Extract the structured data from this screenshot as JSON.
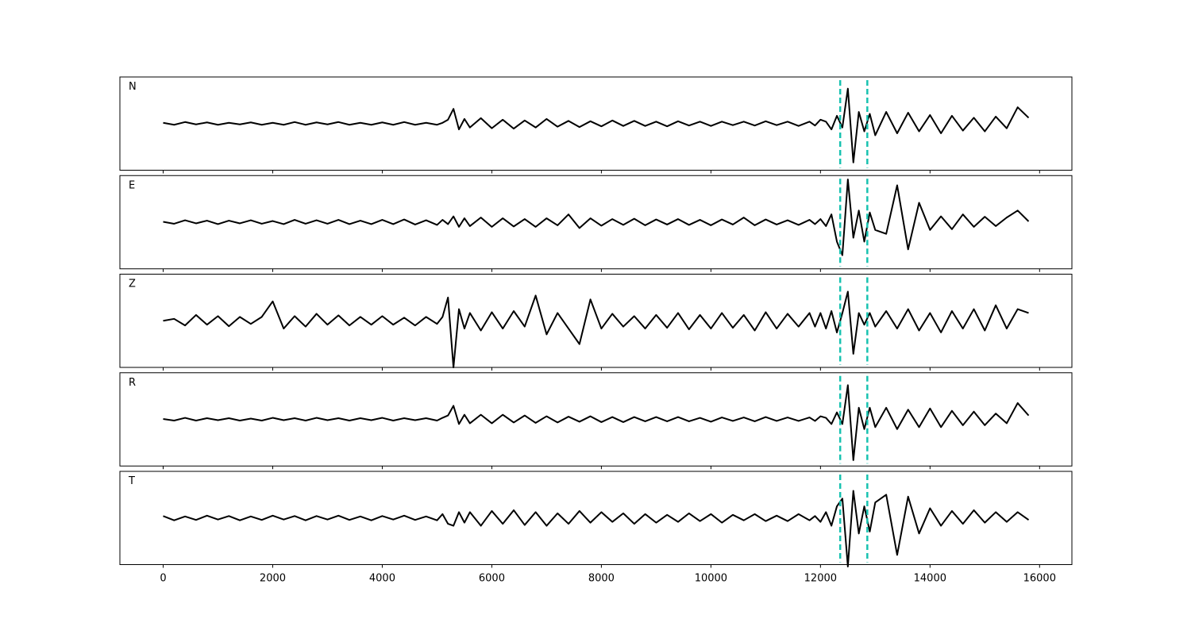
{
  "chart_data": {
    "type": "line",
    "x": [
      0,
      200,
      400,
      600,
      800,
      1000,
      1200,
      1400,
      1600,
      1800,
      2000,
      2200,
      2400,
      2600,
      2800,
      3000,
      3200,
      3400,
      3600,
      3800,
      4000,
      4200,
      4400,
      4600,
      4800,
      5000,
      5100,
      5200,
      5300,
      5400,
      5500,
      5600,
      5800,
      6000,
      6200,
      6400,
      6600,
      6800,
      7000,
      7200,
      7400,
      7600,
      7800,
      8000,
      8200,
      8400,
      8600,
      8800,
      9000,
      9200,
      9400,
      9600,
      9800,
      10000,
      10200,
      10400,
      10600,
      10800,
      11000,
      11200,
      11400,
      11600,
      11800,
      11900,
      12000,
      12100,
      12200,
      12300,
      12400,
      12500,
      12600,
      12700,
      12800,
      12900,
      13000,
      13200,
      13400,
      13600,
      13800,
      14000,
      14200,
      14400,
      14600,
      14800,
      15000,
      15200,
      15400,
      15600,
      15800
    ],
    "series": [
      {
        "name": "N",
        "color": "#000000",
        "values": [
          0.02,
          -0.03,
          0.04,
          -0.02,
          0.03,
          -0.03,
          0.02,
          -0.02,
          0.03,
          -0.03,
          0.02,
          -0.03,
          0.04,
          -0.03,
          0.03,
          -0.02,
          0.04,
          -0.03,
          0.02,
          -0.03,
          0.03,
          -0.03,
          0.04,
          -0.03,
          0.02,
          -0.03,
          0.02,
          0.1,
          0.38,
          -0.15,
          0.12,
          -0.1,
          0.14,
          -0.12,
          0.1,
          -0.13,
          0.08,
          -0.1,
          0.12,
          -0.08,
          0.07,
          -0.09,
          0.06,
          -0.07,
          0.08,
          -0.06,
          0.07,
          -0.06,
          0.05,
          -0.07,
          0.06,
          -0.05,
          0.05,
          -0.06,
          0.05,
          -0.04,
          0.05,
          -0.05,
          0.06,
          -0.04,
          0.05,
          -0.06,
          0.05,
          -0.05,
          0.1,
          0.05,
          -0.15,
          0.2,
          -0.1,
          0.9,
          -1.0,
          0.3,
          -0.2,
          0.25,
          -0.3,
          0.3,
          -0.25,
          0.28,
          -0.2,
          0.22,
          -0.25,
          0.2,
          -0.18,
          0.15,
          -0.2,
          0.18,
          -0.12,
          0.42,
          0.15
        ]
      },
      {
        "name": "E",
        "color": "#000000",
        "values": [
          0.01,
          -0.04,
          0.05,
          -0.03,
          0.04,
          -0.05,
          0.04,
          -0.03,
          0.05,
          -0.04,
          0.03,
          -0.05,
          0.06,
          -0.04,
          0.05,
          -0.04,
          0.06,
          -0.05,
          0.04,
          -0.05,
          0.06,
          -0.05,
          0.07,
          -0.06,
          0.05,
          -0.07,
          0.06,
          -0.05,
          0.15,
          -0.12,
          0.1,
          -0.1,
          0.12,
          -0.12,
          0.1,
          -0.11,
          0.08,
          -0.12,
          0.1,
          -0.08,
          0.2,
          -0.15,
          0.1,
          -0.09,
          0.08,
          -0.07,
          0.09,
          -0.08,
          0.07,
          -0.06,
          0.08,
          -0.07,
          0.06,
          -0.08,
          0.07,
          -0.06,
          0.12,
          -0.08,
          0.07,
          -0.06,
          0.05,
          -0.07,
          0.06,
          -0.05,
          0.08,
          -0.1,
          0.2,
          -0.5,
          -0.85,
          1.1,
          -0.4,
          0.3,
          -0.5,
          0.25,
          -0.2,
          -0.3,
          0.95,
          -0.7,
          0.5,
          -0.2,
          0.15,
          -0.18,
          0.2,
          -0.12,
          0.14,
          -0.1,
          0.12,
          0.3,
          0.02
        ]
      },
      {
        "name": "Z",
        "color": "#000000",
        "values": [
          0.0,
          0.05,
          -0.12,
          0.15,
          -0.1,
          0.12,
          -0.14,
          0.1,
          -0.08,
          0.1,
          0.5,
          -0.2,
          0.12,
          -0.15,
          0.18,
          -0.1,
          0.14,
          -0.12,
          0.1,
          -0.1,
          0.12,
          -0.1,
          0.08,
          -0.12,
          0.1,
          -0.08,
          0.1,
          0.6,
          -1.2,
          0.3,
          -0.2,
          0.2,
          -0.25,
          0.22,
          -0.2,
          0.25,
          -0.15,
          0.65,
          -0.35,
          0.2,
          -0.2,
          -0.6,
          0.55,
          -0.2,
          0.18,
          -0.15,
          0.12,
          -0.2,
          0.15,
          -0.18,
          0.2,
          -0.22,
          0.15,
          -0.2,
          0.2,
          -0.18,
          0.15,
          -0.25,
          0.22,
          -0.2,
          0.18,
          -0.15,
          0.2,
          -0.15,
          0.2,
          -0.2,
          0.25,
          -0.3,
          0.2,
          0.75,
          -0.85,
          0.2,
          -0.1,
          0.2,
          -0.15,
          0.25,
          -0.2,
          0.3,
          -0.25,
          0.2,
          -0.3,
          0.25,
          -0.2,
          0.3,
          -0.25,
          0.4,
          -0.2,
          0.3,
          0.2
        ]
      },
      {
        "name": "R",
        "color": "#000000",
        "values": [
          0.01,
          -0.03,
          0.04,
          -0.03,
          0.03,
          -0.02,
          0.03,
          -0.03,
          0.02,
          -0.03,
          0.04,
          -0.02,
          0.03,
          -0.03,
          0.04,
          -0.02,
          0.03,
          -0.03,
          0.03,
          -0.02,
          0.04,
          -0.03,
          0.03,
          -0.02,
          0.03,
          -0.03,
          0.04,
          0.1,
          0.35,
          -0.12,
          0.12,
          -0.1,
          0.12,
          -0.1,
          0.12,
          -0.08,
          0.1,
          -0.09,
          0.08,
          -0.08,
          0.07,
          -0.06,
          0.08,
          -0.07,
          0.06,
          -0.07,
          0.06,
          -0.05,
          0.06,
          -0.05,
          0.06,
          -0.05,
          0.04,
          -0.06,
          0.05,
          -0.04,
          0.05,
          -0.05,
          0.06,
          -0.04,
          0.05,
          -0.04,
          0.05,
          -0.04,
          0.08,
          0.04,
          -0.12,
          0.18,
          -0.12,
          0.88,
          -1.05,
          0.3,
          -0.25,
          0.3,
          -0.2,
          0.3,
          -0.25,
          0.25,
          -0.2,
          0.28,
          -0.2,
          0.22,
          -0.15,
          0.2,
          -0.15,
          0.15,
          -0.1,
          0.42,
          0.1
        ]
      },
      {
        "name": "T",
        "color": "#000000",
        "values": [
          0.05,
          -0.06,
          0.04,
          -0.05,
          0.06,
          -0.04,
          0.05,
          -0.06,
          0.04,
          -0.05,
          0.06,
          -0.04,
          0.05,
          -0.06,
          0.05,
          -0.04,
          0.06,
          -0.05,
          0.04,
          -0.06,
          0.05,
          -0.04,
          0.06,
          -0.05,
          0.04,
          -0.06,
          0.1,
          -0.15,
          -0.2,
          0.15,
          -0.12,
          0.15,
          -0.2,
          0.18,
          -0.15,
          0.2,
          -0.18,
          0.15,
          -0.2,
          0.12,
          -0.15,
          0.18,
          -0.12,
          0.15,
          -0.1,
          0.12,
          -0.15,
          0.1,
          -0.12,
          0.08,
          -0.1,
          0.12,
          -0.08,
          0.1,
          -0.12,
          0.08,
          -0.06,
          0.1,
          -0.08,
          0.06,
          -0.08,
          0.1,
          -0.06,
          0.05,
          -0.1,
          0.15,
          -0.2,
          0.3,
          0.5,
          -1.25,
          0.7,
          -0.4,
          0.3,
          -0.35,
          0.4,
          0.6,
          -0.95,
          0.55,
          -0.4,
          0.25,
          -0.2,
          0.18,
          -0.15,
          0.2,
          -0.12,
          0.15,
          -0.1,
          0.15,
          -0.05
        ]
      }
    ],
    "xlim": [
      -790,
      16590
    ],
    "xticks": [
      0,
      2000,
      4000,
      6000,
      8000,
      10000,
      12000,
      14000,
      16000
    ],
    "ylim": [
      -1.2,
      1.2
    ],
    "vlines": [
      12360,
      12855
    ],
    "vline_color": "#17c2b0"
  }
}
